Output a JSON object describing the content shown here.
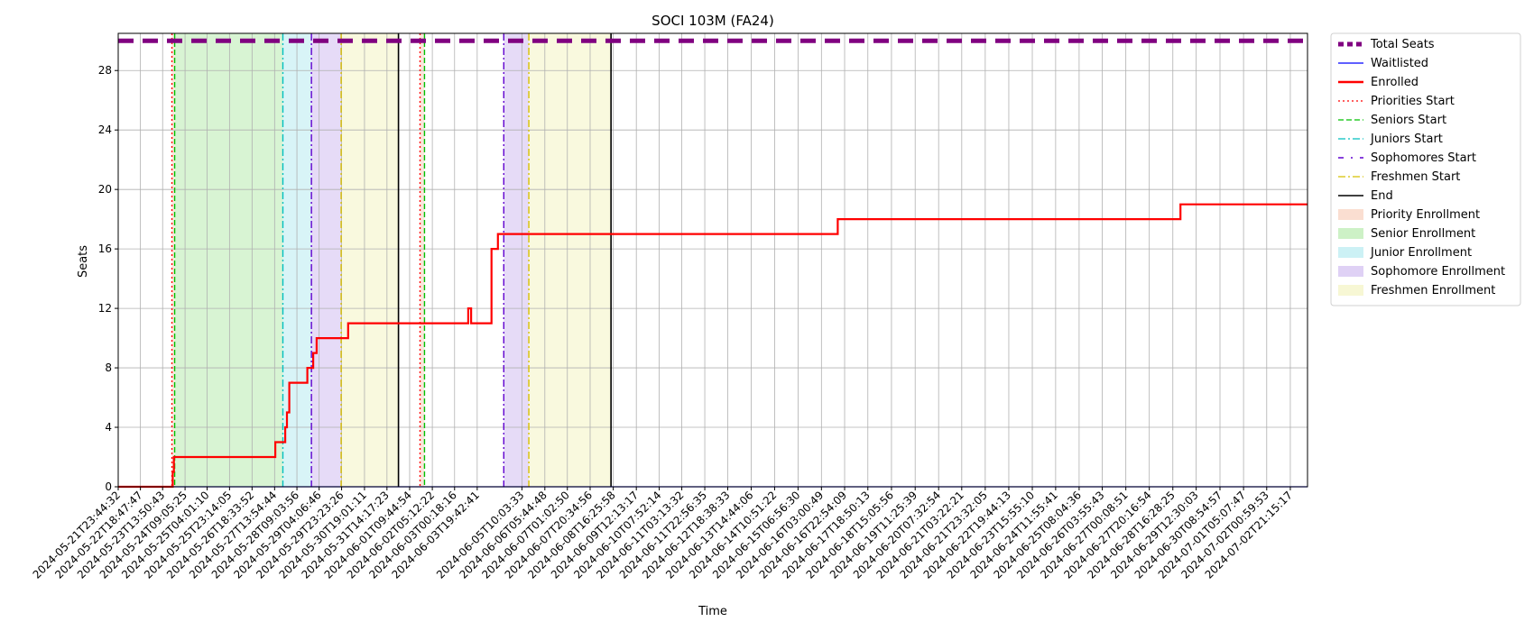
{
  "chart_data": {
    "type": "line",
    "title": "SOCI 103M (FA24)",
    "xlabel": "Time",
    "ylabel": "Seats",
    "x_type": "datetime",
    "xlim": [
      "2024-05-21T23:44:32",
      "2024-07-03T12:00:00"
    ],
    "ylim": [
      0,
      30.5
    ],
    "y_ticks": [
      0,
      4,
      8,
      12,
      16,
      20,
      24,
      28
    ],
    "grid": true,
    "legend_position": "outside-right-top",
    "x_tick_labels": [
      "2024-05-21T23:44:32",
      "2024-05-22T18:47:47",
      "2024-05-23T13:50:43",
      "2024-05-24T09:05:25",
      "2024-05-25T04:01:10",
      "2024-05-25T23:14:05",
      "2024-05-26T18:33:52",
      "2024-05-27T13:54:44",
      "2024-05-28T09:03:56",
      "2024-05-29T04:06:46",
      "2024-05-29T23:23:26",
      "2024-05-30T19:01:11",
      "2024-05-31T14:17:23",
      "2024-06-01T09:44:54",
      "2024-06-02T05:12:22",
      "2024-06-03T00:18:16",
      "2024-06-03T19:42:41",
      "2024-06-05T10:03:33",
      "2024-06-06T05:44:48",
      "2024-06-07T01:02:50",
      "2024-06-07T20:34:56",
      "2024-06-08T16:25:58",
      "2024-06-09T12:13:17",
      "2024-06-10T07:52:14",
      "2024-06-11T03:13:32",
      "2024-06-11T22:56:35",
      "2024-06-12T18:38:33",
      "2024-06-13T14:44:06",
      "2024-06-14T10:51:22",
      "2024-06-15T06:56:30",
      "2024-06-16T03:00:49",
      "2024-06-16T22:54:09",
      "2024-06-17T18:50:13",
      "2024-06-18T15:05:56",
      "2024-06-19T11:25:39",
      "2024-06-20T07:32:54",
      "2024-06-21T03:22:21",
      "2024-06-21T23:32:05",
      "2024-06-22T19:44:13",
      "2024-06-23T15:55:10",
      "2024-06-24T11:55:41",
      "2024-06-25T08:04:36",
      "2024-06-26T03:55:43",
      "2024-06-27T00:08:51",
      "2024-06-27T20:16:54",
      "2024-06-28T16:28:25",
      "2024-06-29T12:30:03",
      "2024-06-30T08:54:57",
      "2024-07-01T05:07:47",
      "2024-07-02T00:59:53",
      "2024-07-02T21:15:17"
    ],
    "series": [
      {
        "name": "Total Seats",
        "color": "#800080",
        "style": "dashed-thick",
        "x": [
          "2024-05-21T23:44:32",
          "2024-07-03T12:00:00"
        ],
        "values": [
          30,
          30
        ]
      },
      {
        "name": "Waitlisted",
        "color": "#0000ff",
        "style": "solid",
        "x": [
          "2024-05-21T23:44:32",
          "2024-07-03T12:00:00"
        ],
        "values": [
          0,
          0
        ]
      },
      {
        "name": "Enrolled",
        "color": "#ff0000",
        "style": "step",
        "x": [
          "2024-05-21T23:44:32",
          "2024-05-23T22:30:00",
          "2024-05-23T23:30:00",
          "2024-05-24T02:30:00",
          "2024-05-27T14:30:00",
          "2024-05-27T23:00:00",
          "2024-05-28T00:30:00",
          "2024-05-28T02:30:00",
          "2024-05-28T04:00:00",
          "2024-05-28T18:00:00",
          "2024-05-28T23:00:00",
          "2024-05-29T02:00:00",
          "2024-05-30T05:00:00",
          "2024-06-03T12:00:00",
          "2024-06-03T14:30:00",
          "2024-06-04T08:00:00",
          "2024-06-04T13:30:00",
          "2024-06-04T16:00:00",
          "2024-06-16T17:00:00",
          "2024-06-28T23:00:00",
          "2024-07-03T12:00:00"
        ],
        "values": [
          0,
          1,
          2,
          2,
          3,
          4,
          5,
          7,
          7,
          8,
          9,
          10,
          11,
          12,
          11,
          16,
          17,
          17,
          18,
          19,
          19
        ]
      }
    ],
    "markers": [
      {
        "name": "Priorities Start",
        "date": "2024-05-23T21:50:00",
        "color": "#ff0000",
        "style": "dotted"
      },
      {
        "name": "Priorities Start",
        "date": "2024-06-01T18:40:00",
        "color": "#ff0000",
        "style": "dotted"
      },
      {
        "name": "Seniors Start",
        "date": "2024-05-24T00:10:00",
        "color": "#00c000",
        "style": "dashed"
      },
      {
        "name": "Seniors Start",
        "date": "2024-06-01T22:30:00",
        "color": "#00c000",
        "style": "dashed"
      },
      {
        "name": "Juniors Start",
        "date": "2024-05-27T21:00:00",
        "color": "#00bfbf",
        "style": "dashdot"
      },
      {
        "name": "Sophomores Start",
        "date": "2024-05-28T21:30:00",
        "color": "#6000d0",
        "style": "dashdot"
      },
      {
        "name": "Sophomores Start",
        "date": "2024-06-04T18:30:00",
        "color": "#6000d0",
        "style": "dashdot"
      },
      {
        "name": "Freshmen Start",
        "date": "2024-05-29T23:00:00",
        "color": "#d8c000",
        "style": "dashdot"
      },
      {
        "name": "Freshmen Start",
        "date": "2024-06-05T16:00:00",
        "color": "#d8c000",
        "style": "dashdot"
      },
      {
        "name": "End",
        "date": "2024-06-01T00:10:00",
        "color": "#000000",
        "style": "solid"
      },
      {
        "name": "End",
        "date": "2024-06-08T14:30:00",
        "color": "#000000",
        "style": "solid"
      }
    ],
    "periods": [
      {
        "name": "Priority Enrollment",
        "color": "#f4b59a",
        "start": "2024-05-23T21:50:00",
        "end": "2024-05-24T00:10:00"
      },
      {
        "name": "Priority Enrollment",
        "color": "#f4b59a",
        "start": "2024-06-01T18:40:00",
        "end": "2024-06-01T22:30:00"
      },
      {
        "name": "Senior Enrollment",
        "color": "#90e080",
        "start": "2024-05-24T00:10:00",
        "end": "2024-05-27T21:00:00"
      },
      {
        "name": "Junior Enrollment",
        "color": "#8fe0e8",
        "start": "2024-05-27T21:00:00",
        "end": "2024-05-28T21:30:00"
      },
      {
        "name": "Sophomore Enrollment",
        "color": "#b898e8",
        "start": "2024-05-28T21:30:00",
        "end": "2024-05-29T23:00:00"
      },
      {
        "name": "Sophomore Enrollment",
        "color": "#b898e8",
        "start": "2024-06-04T18:30:00",
        "end": "2024-06-05T16:00:00"
      },
      {
        "name": "Freshmen Enrollment",
        "color": "#eeeea0",
        "start": "2024-05-29T23:00:00",
        "end": "2024-06-01T00:10:00"
      },
      {
        "name": "Freshmen Enrollment",
        "color": "#eeeea0",
        "start": "2024-06-05T16:00:00",
        "end": "2024-06-08T14:30:00"
      }
    ],
    "legend": [
      {
        "label": "Total Seats",
        "kind": "line",
        "color": "#800080",
        "dash": "6,4",
        "width": 5
      },
      {
        "label": "Waitlisted",
        "kind": "line",
        "color": "#0000ff",
        "dash": "",
        "width": 1.3
      },
      {
        "label": "Enrolled",
        "kind": "line",
        "color": "#ff0000",
        "dash": "",
        "width": 2.5
      },
      {
        "label": "Priorities Start",
        "kind": "line",
        "color": "#ff0000",
        "dash": "2,3",
        "width": 1.3
      },
      {
        "label": "Seniors Start",
        "kind": "line",
        "color": "#00c000",
        "dash": "6,3",
        "width": 1.3
      },
      {
        "label": "Juniors Start",
        "kind": "line",
        "color": "#00bfbf",
        "dash": "8,3,2,3",
        "width": 1.3
      },
      {
        "label": "Sophomores Start",
        "kind": "line",
        "color": "#6000d0",
        "dash": "6,8,2,8",
        "width": 1.6
      },
      {
        "label": "Freshmen Start",
        "kind": "line",
        "color": "#d8c000",
        "dash": "8,3,2,3",
        "width": 1.3
      },
      {
        "label": "End",
        "kind": "line",
        "color": "#000000",
        "dash": "",
        "width": 1.6
      },
      {
        "label": "Priority Enrollment",
        "kind": "patch",
        "color": "#f4b59a"
      },
      {
        "label": "Senior Enrollment",
        "kind": "patch",
        "color": "#90e080"
      },
      {
        "label": "Junior Enrollment",
        "kind": "patch",
        "color": "#8fe0e8"
      },
      {
        "label": "Sophomore Enrollment",
        "kind": "patch",
        "color": "#b898e8"
      },
      {
        "label": "Freshmen Enrollment",
        "kind": "patch",
        "color": "#eeeea0"
      }
    ]
  }
}
